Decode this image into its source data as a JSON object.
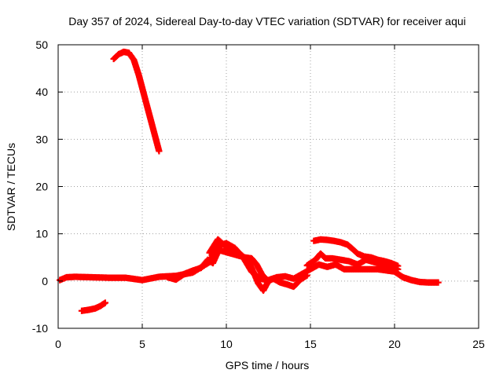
{
  "chart_data": {
    "type": "scatter",
    "title": "Day 357 of 2024, Sidereal Day-to-day VTEC variation (SDTVAR) for receiver aqui",
    "xlabel": "GPS time / hours",
    "ylabel": "SDTVAR / TECUs",
    "xlim": [
      0,
      25
    ],
    "ylim": [
      -10,
      50
    ],
    "grid": true,
    "x_ticks": [
      0,
      5,
      10,
      15,
      20,
      25
    ],
    "y_ticks": [
      -10,
      0,
      10,
      20,
      30,
      40,
      50
    ],
    "marker": "+",
    "color": "#ff0000",
    "series": [
      {
        "name": "high-arc",
        "points": [
          [
            3.3,
            47.0
          ],
          [
            3.6,
            48.0
          ],
          [
            3.9,
            48.5
          ],
          [
            4.2,
            48.3
          ],
          [
            4.5,
            46.8
          ],
          [
            4.8,
            43.5
          ],
          [
            5.1,
            39.5
          ],
          [
            5.4,
            35.5
          ],
          [
            5.7,
            31.5
          ],
          [
            6.0,
            27.5
          ]
        ]
      },
      {
        "name": "negative-arc",
        "points": [
          [
            1.4,
            -6.3
          ],
          [
            1.8,
            -6.1
          ],
          [
            2.2,
            -5.8
          ],
          [
            2.5,
            -5.3
          ],
          [
            2.8,
            -4.6
          ]
        ]
      },
      {
        "name": "baseline",
        "points": [
          [
            0.1,
            0.2
          ],
          [
            0.5,
            0.8
          ],
          [
            1.0,
            0.9
          ],
          [
            2.0,
            0.8
          ],
          [
            3.0,
            0.7
          ],
          [
            4.0,
            0.7
          ],
          [
            5.0,
            0.2
          ],
          [
            6.0,
            0.9
          ],
          [
            7.0,
            1.1
          ],
          [
            8.0,
            1.8
          ],
          [
            9.0,
            4.0
          ],
          [
            9.5,
            7.5
          ],
          [
            10.0,
            8.0
          ],
          [
            10.5,
            7.0
          ],
          [
            11.0,
            5.0
          ],
          [
            11.5,
            2.0
          ],
          [
            12.0,
            0.5
          ],
          [
            12.5,
            0.2
          ],
          [
            13.0,
            0.8
          ],
          [
            13.5,
            1.0
          ],
          [
            14.0,
            0.5
          ],
          [
            14.5,
            1.5
          ],
          [
            15.0,
            2.5
          ],
          [
            15.5,
            3.5
          ],
          [
            16.0,
            3.0
          ],
          [
            16.5,
            3.5
          ],
          [
            17.0,
            2.5
          ],
          [
            17.5,
            2.5
          ],
          [
            18.0,
            2.5
          ],
          [
            19.0,
            2.5
          ],
          [
            20.0,
            2.0
          ],
          [
            20.5,
            0.8
          ],
          [
            21.0,
            0.2
          ],
          [
            21.5,
            -0.2
          ],
          [
            22.0,
            -0.3
          ],
          [
            22.6,
            -0.3
          ]
        ]
      },
      {
        "name": "afternoon-arc",
        "points": [
          [
            14.8,
            3.3
          ],
          [
            15.3,
            4.5
          ],
          [
            15.6,
            5.8
          ],
          [
            15.9,
            4.8
          ],
          [
            16.3,
            4.8
          ],
          [
            16.8,
            4.5
          ],
          [
            17.3,
            4.2
          ],
          [
            17.8,
            3.5
          ],
          [
            18.3,
            4.5
          ],
          [
            18.8,
            4.0
          ],
          [
            19.3,
            3.5
          ],
          [
            19.8,
            3.0
          ],
          [
            20.2,
            2.5
          ]
        ]
      },
      {
        "name": "upper-afternoon-arc",
        "points": [
          [
            15.2,
            8.5
          ],
          [
            15.6,
            8.8
          ],
          [
            16.0,
            8.7
          ],
          [
            16.4,
            8.5
          ],
          [
            16.8,
            8.2
          ],
          [
            17.2,
            7.7
          ],
          [
            17.5,
            6.8
          ],
          [
            17.8,
            5.8
          ],
          [
            18.2,
            5.2
          ],
          [
            18.6,
            5.0
          ],
          [
            19.0,
            4.5
          ],
          [
            19.4,
            4.2
          ],
          [
            19.8,
            3.8
          ],
          [
            20.2,
            3.2
          ]
        ]
      },
      {
        "name": "midday-arc-a",
        "points": [
          [
            9.0,
            6.0
          ],
          [
            9.5,
            8.8
          ],
          [
            9.9,
            7.5
          ],
          [
            10.4,
            6.2
          ],
          [
            10.9,
            5.5
          ],
          [
            11.3,
            4.3
          ],
          [
            11.6,
            2.0
          ],
          [
            11.9,
            -0.5
          ],
          [
            12.2,
            -2.0
          ],
          [
            12.5,
            0.0
          ],
          [
            12.8,
            0.5
          ],
          [
            13.2,
            -0.3
          ],
          [
            13.6,
            -0.7
          ],
          [
            14.0,
            -1.2
          ],
          [
            14.4,
            0.3
          ],
          [
            14.8,
            1.2
          ]
        ]
      },
      {
        "name": "midday-arc-b",
        "points": [
          [
            9.2,
            5.0
          ],
          [
            9.6,
            6.5
          ],
          [
            10.1,
            6.0
          ],
          [
            10.6,
            5.5
          ],
          [
            11.1,
            5.0
          ],
          [
            11.5,
            4.8
          ],
          [
            11.8,
            3.5
          ],
          [
            12.1,
            1.5
          ],
          [
            12.4,
            0.2
          ]
        ]
      },
      {
        "name": "morning-arc",
        "points": [
          [
            6.5,
            0.8
          ],
          [
            7.0,
            0.3
          ],
          [
            7.5,
            1.5
          ],
          [
            8.0,
            2.2
          ],
          [
            8.5,
            2.8
          ],
          [
            8.9,
            4.5
          ],
          [
            9.2,
            3.8
          ],
          [
            9.5,
            6.2
          ]
        ]
      }
    ]
  }
}
